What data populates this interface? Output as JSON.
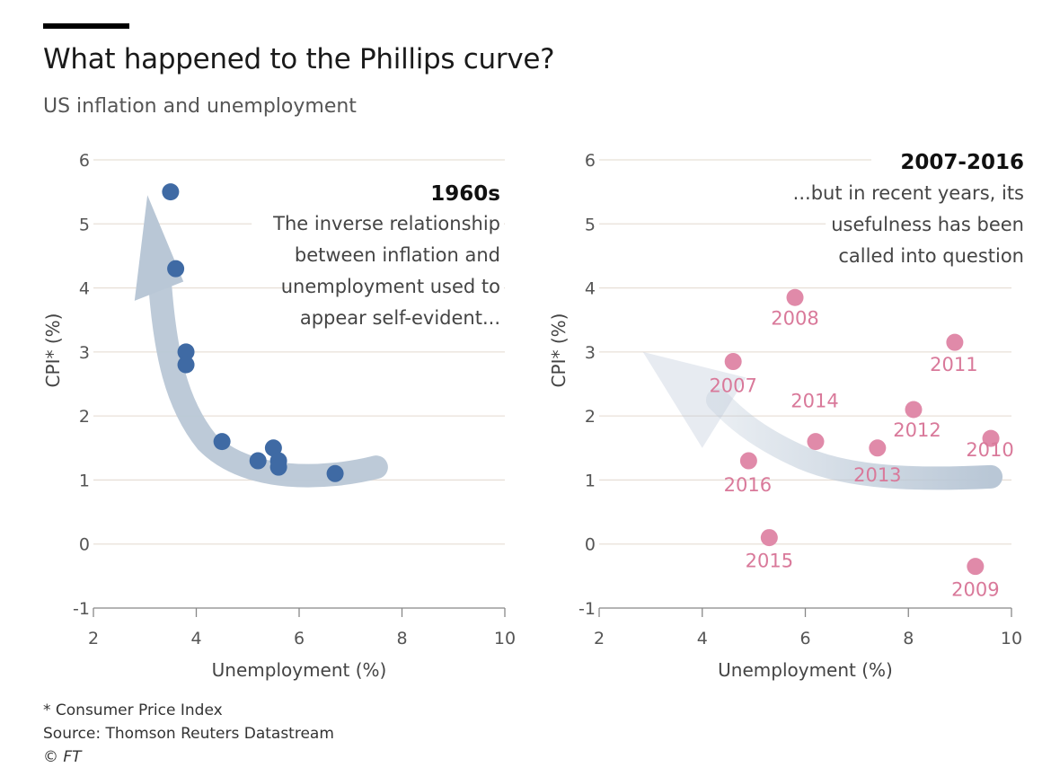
{
  "header": {
    "title": "What happened to the Phillips curve?",
    "subtitle": "US inflation and unemployment"
  },
  "footer": {
    "note": "* Consumer Price Index",
    "source": "Source: Thomson Reuters Datastream",
    "credit": "© FT"
  },
  "colors": {
    "blue_points": "#3f6aa4",
    "pink_points": "#e08aa9",
    "pink_labels": "#d9799a",
    "arrow": "#b9c7d6",
    "gridline": "#e8e0d8"
  },
  "chart_data": [
    {
      "type": "scatter",
      "panel_title": "1960s",
      "annotation_lines": [
        "The inverse relationship",
        "between inflation and",
        "unemployment used to",
        "appear self-evident..."
      ],
      "xlabel": "Unemployment (%)",
      "ylabel": "CPI* (%)",
      "xlim": [
        2,
        10
      ],
      "ylim": [
        -1,
        6
      ],
      "xticks": [
        2,
        4,
        6,
        8,
        10
      ],
      "yticks": [
        -1,
        0,
        1,
        2,
        3,
        4,
        5,
        6
      ],
      "grid": "horizontal",
      "arrow": "trend arrow from lower right toward upper left",
      "points": [
        {
          "x": 3.5,
          "y": 5.5
        },
        {
          "x": 3.6,
          "y": 4.3
        },
        {
          "x": 3.8,
          "y": 3.0
        },
        {
          "x": 3.8,
          "y": 2.8
        },
        {
          "x": 4.5,
          "y": 1.6
        },
        {
          "x": 5.2,
          "y": 1.3
        },
        {
          "x": 5.5,
          "y": 1.5
        },
        {
          "x": 5.6,
          "y": 1.3
        },
        {
          "x": 5.6,
          "y": 1.2
        },
        {
          "x": 6.7,
          "y": 1.1
        }
      ]
    },
    {
      "type": "scatter",
      "panel_title": "2007-2016",
      "annotation_lines": [
        "...but in recent years, its",
        "usefulness has been",
        "called into question"
      ],
      "xlabel": "Unemployment (%)",
      "ylabel": "CPI* (%)",
      "xlim": [
        2,
        10
      ],
      "ylim": [
        -1,
        6
      ],
      "xticks": [
        2,
        4,
        6,
        8,
        10
      ],
      "yticks": [
        -1,
        0,
        1,
        2,
        3,
        4,
        5,
        6
      ],
      "grid": "horizontal",
      "arrow": "trend arrow from lower right toward upper left",
      "points": [
        {
          "label": "2007",
          "x": 4.6,
          "y": 2.85
        },
        {
          "label": "2008",
          "x": 5.8,
          "y": 3.85
        },
        {
          "label": "2009",
          "x": 9.3,
          "y": -0.35
        },
        {
          "label": "2010",
          "x": 9.6,
          "y": 1.65
        },
        {
          "label": "2011",
          "x": 8.9,
          "y": 3.15
        },
        {
          "label": "2012",
          "x": 8.1,
          "y": 2.1
        },
        {
          "label": "2013",
          "x": 7.4,
          "y": 1.5
        },
        {
          "label": "2014",
          "x": 6.2,
          "y": 1.6
        },
        {
          "label": "2015",
          "x": 5.3,
          "y": 0.1
        },
        {
          "label": "2016",
          "x": 4.9,
          "y": 1.3
        }
      ]
    }
  ]
}
